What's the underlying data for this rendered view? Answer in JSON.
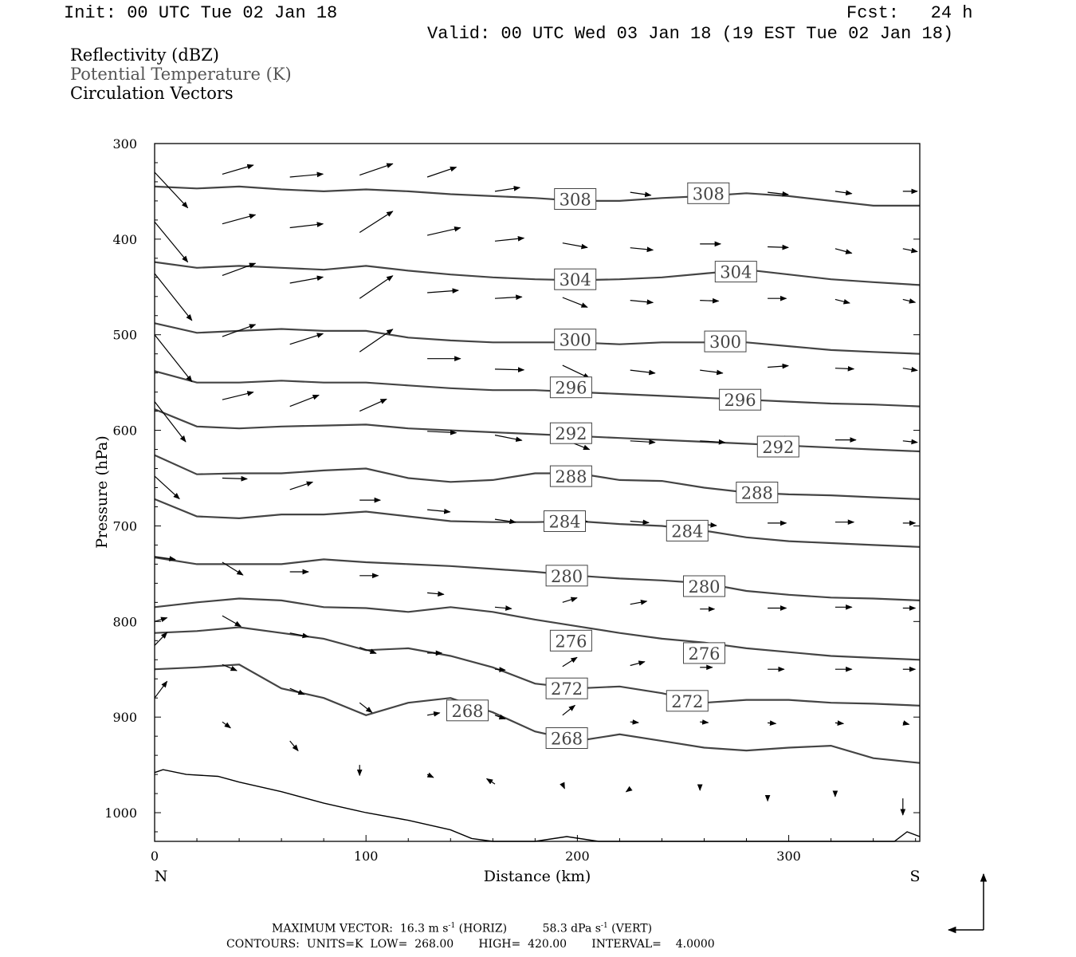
{
  "header": {
    "init": "Init: 00 UTC Tue 02 Jan 18",
    "fcst": "Fcst:   24 h",
    "valid": "Valid: 00 UTC Wed 03 Jan 18 (19 EST Tue 02 Jan 18)"
  },
  "legend": {
    "items": [
      "Reflectivity (dBZ)",
      "Potential Temperature (K)",
      "Circulation Vectors"
    ],
    "colors": [
      "#000000",
      "#555555",
      "#000000"
    ]
  },
  "footer": {
    "max_vector": "MAXIMUM VECTOR:  16.3 m s",
    "max_exp1": "-1",
    "horiz": " (HORIZ)          58.3 dPa s",
    "max_exp2": "-1",
    "vert": " (VERT)",
    "contours": "CONTOURS:  UNITS=K  LOW=  268.00       HIGH=  420.00       INTERVAL=    4.0000"
  },
  "chart_data": {
    "type": "line",
    "title": "",
    "xlabel": "Distance (km)",
    "ylabel": "Pressure (hPa)",
    "xlim": [
      0,
      362
    ],
    "ylim": [
      300,
      1030
    ],
    "y_inverted": true,
    "xticks": [
      0,
      100,
      200,
      300
    ],
    "yticks": [
      300,
      400,
      500,
      600,
      700,
      800,
      900,
      1000
    ],
    "x_end_labels": {
      "left": "N",
      "right": "S"
    },
    "grid": false,
    "colors": {
      "contour": "#444444",
      "terrain": "#000000",
      "vector": "#000000"
    },
    "contour_label_values": [
      "308",
      "304",
      "300",
      "296",
      "292",
      "288",
      "284",
      "280",
      "276",
      "272",
      "268"
    ],
    "series": [
      {
        "name": "308",
        "x": [
          0,
          20,
          40,
          60,
          80,
          100,
          120,
          140,
          160,
          180,
          200,
          220,
          240,
          260,
          280,
          300,
          320,
          340,
          362
        ],
        "y": [
          345,
          347,
          345,
          348,
          350,
          348,
          350,
          353,
          355,
          357,
          360,
          360,
          357,
          355,
          352,
          355,
          360,
          365,
          365
        ]
      },
      {
        "name": "304",
        "x": [
          0,
          20,
          40,
          60,
          80,
          100,
          120,
          140,
          160,
          180,
          200,
          220,
          240,
          260,
          280,
          300,
          320,
          340,
          362
        ],
        "y": [
          424,
          430,
          428,
          430,
          432,
          428,
          433,
          437,
          440,
          442,
          443,
          442,
          440,
          436,
          432,
          437,
          442,
          445,
          448
        ]
      },
      {
        "name": "300",
        "x": [
          0,
          20,
          40,
          60,
          80,
          100,
          120,
          140,
          160,
          180,
          200,
          220,
          240,
          260,
          280,
          300,
          320,
          340,
          362
        ],
        "y": [
          488,
          498,
          496,
          494,
          496,
          496,
          503,
          506,
          508,
          508,
          508,
          510,
          508,
          508,
          508,
          512,
          516,
          518,
          520
        ]
      },
      {
        "name": "296",
        "x": [
          0,
          20,
          40,
          60,
          80,
          100,
          120,
          140,
          160,
          180,
          200,
          220,
          240,
          260,
          280,
          300,
          320,
          340,
          362
        ],
        "y": [
          538,
          550,
          550,
          548,
          550,
          550,
          553,
          556,
          558,
          558,
          560,
          562,
          564,
          566,
          568,
          570,
          572,
          573,
          575
        ]
      },
      {
        "name": "292",
        "x": [
          0,
          20,
          40,
          60,
          80,
          100,
          120,
          140,
          160,
          180,
          200,
          220,
          240,
          260,
          280,
          300,
          320,
          340,
          362
        ],
        "y": [
          578,
          596,
          598,
          596,
          595,
          594,
          598,
          600,
          602,
          604,
          606,
          608,
          610,
          612,
          614,
          616,
          618,
          620,
          622
        ]
      },
      {
        "name": "288",
        "x": [
          0,
          20,
          40,
          60,
          80,
          100,
          120,
          140,
          160,
          180,
          200,
          220,
          240,
          260,
          280,
          300,
          320,
          340,
          362
        ],
        "y": [
          626,
          646,
          645,
          645,
          642,
          640,
          650,
          654,
          652,
          645,
          645,
          652,
          653,
          660,
          665,
          667,
          668,
          670,
          672
        ]
      },
      {
        "name": "284",
        "x": [
          0,
          20,
          40,
          60,
          80,
          100,
          120,
          140,
          160,
          180,
          200,
          220,
          240,
          260,
          280,
          300,
          320,
          340,
          362
        ],
        "y": [
          672,
          690,
          692,
          688,
          688,
          685,
          690,
          695,
          696,
          696,
          695,
          698,
          700,
          705,
          712,
          716,
          718,
          720,
          722
        ]
      },
      {
        "name": "280",
        "x": [
          0,
          20,
          40,
          60,
          80,
          100,
          120,
          140,
          160,
          180,
          200,
          220,
          240,
          260,
          280,
          300,
          320,
          340,
          362
        ],
        "y": [
          733,
          740,
          740,
          740,
          735,
          738,
          740,
          742,
          745,
          748,
          752,
          755,
          757,
          760,
          768,
          772,
          775,
          776,
          778
        ]
      },
      {
        "name": "276",
        "x": [
          0,
          20,
          40,
          60,
          80,
          100,
          120,
          140,
          160,
          180,
          200,
          220,
          240,
          260,
          280,
          300,
          320,
          340,
          362
        ],
        "y": [
          785,
          780,
          776,
          778,
          785,
          786,
          790,
          785,
          790,
          798,
          805,
          812,
          818,
          822,
          828,
          832,
          836,
          838,
          840
        ]
      },
      {
        "name": "272",
        "x": [
          0,
          20,
          40,
          60,
          80,
          100,
          120,
          140,
          160,
          180,
          200,
          220,
          240,
          260,
          280,
          300,
          320,
          340,
          362
        ],
        "y": [
          812,
          810,
          806,
          812,
          818,
          830,
          828,
          836,
          848,
          865,
          870,
          868,
          875,
          885,
          882,
          882,
          885,
          886,
          888
        ]
      },
      {
        "name": "268",
        "x": [
          0,
          20,
          40,
          60,
          80,
          100,
          120,
          140,
          160,
          180,
          200,
          220,
          240,
          260,
          280,
          300,
          320,
          340,
          362
        ],
        "y": [
          850,
          848,
          845,
          870,
          880,
          898,
          885,
          880,
          895,
          915,
          925,
          918,
          925,
          932,
          935,
          932,
          930,
          943,
          948
        ]
      }
    ],
    "terrain": {
      "name": "",
      "x": [
        0,
        4,
        15,
        30,
        40,
        60,
        80,
        100,
        120,
        140,
        150,
        160,
        180,
        195,
        210,
        240,
        280,
        320,
        350,
        356,
        362
      ],
      "y": [
        958,
        955,
        960,
        962,
        968,
        978,
        990,
        1000,
        1008,
        1018,
        1027,
        1030,
        1030,
        1025,
        1030,
        1030,
        1030,
        1030,
        1030,
        1020,
        1025
      ]
    },
    "vectors": [
      {
        "x": 32,
        "p": 332,
        "u": 15,
        "w": -12
      },
      {
        "x": 64,
        "p": 335,
        "u": 16,
        "w": -4
      },
      {
        "x": 97,
        "p": 333,
        "u": 16,
        "w": -15
      },
      {
        "x": 129,
        "p": 335,
        "u": 14,
        "w": -13
      },
      {
        "x": 161,
        "p": 350,
        "u": 12,
        "w": -5
      },
      {
        "x": 193,
        "p": 351,
        "u": 16,
        "w": -2
      },
      {
        "x": 225,
        "p": 351,
        "u": 10,
        "w": 4
      },
      {
        "x": 290,
        "p": 351,
        "u": 10,
        "w": 3
      },
      {
        "x": 322,
        "p": 350,
        "u": 8,
        "w": 3
      },
      {
        "x": 354,
        "p": 350,
        "u": 7,
        "w": 0
      },
      {
        "x": 0,
        "p": 330,
        "u": 16,
        "w": 47
      },
      {
        "x": 32,
        "p": 384,
        "u": 16,
        "w": -12
      },
      {
        "x": 64,
        "p": 388,
        "u": 16,
        "w": -5
      },
      {
        "x": 97,
        "p": 393,
        "u": 16,
        "w": -28
      },
      {
        "x": 129,
        "p": 396,
        "u": 16,
        "w": -10
      },
      {
        "x": 161,
        "p": 402,
        "u": 14,
        "w": -4
      },
      {
        "x": 193,
        "p": 404,
        "u": 12,
        "w": 6
      },
      {
        "x": 225,
        "p": 409,
        "u": 11,
        "w": 3
      },
      {
        "x": 258,
        "p": 405,
        "u": 10,
        "w": 0
      },
      {
        "x": 290,
        "p": 408,
        "u": 10,
        "w": 1
      },
      {
        "x": 322,
        "p": 410,
        "u": 8,
        "w": 6
      },
      {
        "x": 354,
        "p": 410,
        "u": 7,
        "w": 4
      },
      {
        "x": 0,
        "p": 382,
        "u": 16,
        "w": 53
      },
      {
        "x": 32,
        "p": 438,
        "u": 16,
        "w": -16
      },
      {
        "x": 64,
        "p": 446,
        "u": 16,
        "w": -8
      },
      {
        "x": 97,
        "p": 462,
        "u": 16,
        "w": -30
      },
      {
        "x": 129,
        "p": 456,
        "u": 15,
        "w": -3
      },
      {
        "x": 161,
        "p": 462,
        "u": 13,
        "w": -2
      },
      {
        "x": 193,
        "p": 461,
        "u": 12,
        "w": 13
      },
      {
        "x": 225,
        "p": 464,
        "u": 11,
        "w": 3
      },
      {
        "x": 258,
        "p": 464,
        "u": 9,
        "w": 1
      },
      {
        "x": 290,
        "p": 462,
        "u": 9,
        "w": 0
      },
      {
        "x": 322,
        "p": 463,
        "u": 7,
        "w": 5
      },
      {
        "x": 354,
        "p": 463,
        "u": 6,
        "w": 4
      },
      {
        "x": 0,
        "p": 436,
        "u": 18,
        "w": 62
      },
      {
        "x": 32,
        "p": 502,
        "u": 16,
        "w": -16
      },
      {
        "x": 64,
        "p": 510,
        "u": 16,
        "w": -14
      },
      {
        "x": 97,
        "p": 518,
        "u": 16,
        "w": -30
      },
      {
        "x": 129,
        "p": 525,
        "u": 16,
        "w": 0
      },
      {
        "x": 161,
        "p": 536,
        "u": 14,
        "w": 1
      },
      {
        "x": 193,
        "p": 532,
        "u": 13,
        "w": 17
      },
      {
        "x": 225,
        "p": 537,
        "u": 12,
        "w": 4
      },
      {
        "x": 258,
        "p": 537,
        "u": 11,
        "w": 4
      },
      {
        "x": 290,
        "p": 534,
        "u": 10,
        "w": -2
      },
      {
        "x": 322,
        "p": 535,
        "u": 9,
        "w": 1
      },
      {
        "x": 354,
        "p": 535,
        "u": 7,
        "w": 3
      },
      {
        "x": 0,
        "p": 500,
        "u": 18,
        "w": 62
      },
      {
        "x": 32,
        "p": 568,
        "u": 15,
        "w": -10
      },
      {
        "x": 64,
        "p": 575,
        "u": 14,
        "w": -15
      },
      {
        "x": 97,
        "p": 580,
        "u": 13,
        "w": -16
      },
      {
        "x": 129,
        "p": 601,
        "u": 14,
        "w": 2
      },
      {
        "x": 161,
        "p": 605,
        "u": 13,
        "w": 7
      },
      {
        "x": 193,
        "p": 609,
        "u": 13,
        "w": 14
      },
      {
        "x": 225,
        "p": 611,
        "u": 12,
        "w": 2
      },
      {
        "x": 258,
        "p": 611,
        "u": 12,
        "w": 2
      },
      {
        "x": 290,
        "p": 609,
        "u": 11,
        "w": -1
      },
      {
        "x": 322,
        "p": 610,
        "u": 10,
        "w": 0
      },
      {
        "x": 354,
        "p": 611,
        "u": 7,
        "w": 2
      },
      {
        "x": 0,
        "p": 570,
        "u": 15,
        "w": 53
      },
      {
        "x": 32,
        "p": 650,
        "u": 12,
        "w": 1
      },
      {
        "x": 64,
        "p": 662,
        "u": 11,
        "w": -10
      },
      {
        "x": 97,
        "p": 673,
        "u": 10,
        "w": 0
      },
      {
        "x": 129,
        "p": 683,
        "u": 11,
        "w": 3
      },
      {
        "x": 161,
        "p": 693,
        "u": 10,
        "w": 4
      },
      {
        "x": 193,
        "p": 693,
        "u": 12,
        "w": 3
      },
      {
        "x": 225,
        "p": 695,
        "u": 9,
        "w": 2
      },
      {
        "x": 258,
        "p": 698,
        "u": 8,
        "w": 2
      },
      {
        "x": 290,
        "p": 697,
        "u": 9,
        "w": 0
      },
      {
        "x": 322,
        "p": 696,
        "u": 9,
        "w": 0
      },
      {
        "x": 354,
        "p": 697,
        "u": 6,
        "w": 0
      },
      {
        "x": 0,
        "p": 648,
        "u": 12,
        "w": 30
      },
      {
        "x": 32,
        "p": 738,
        "u": 10,
        "w": 17
      },
      {
        "x": 64,
        "p": 748,
        "u": 9,
        "w": 0
      },
      {
        "x": 97,
        "p": 752,
        "u": 9,
        "w": 0
      },
      {
        "x": 129,
        "p": 770,
        "u": 8,
        "w": 2
      },
      {
        "x": 161,
        "p": 785,
        "u": 8,
        "w": 2
      },
      {
        "x": 193,
        "p": 780,
        "u": 7,
        "w": -6
      },
      {
        "x": 225,
        "p": 782,
        "u": 8,
        "w": -4
      },
      {
        "x": 258,
        "p": 787,
        "u": 7,
        "w": 0
      },
      {
        "x": 290,
        "p": 786,
        "u": 9,
        "w": 0
      },
      {
        "x": 322,
        "p": 785,
        "u": 8,
        "w": 0
      },
      {
        "x": 354,
        "p": 786,
        "u": 6,
        "w": 0
      },
      {
        "x": 0,
        "p": 732,
        "u": 10,
        "w": 4
      },
      {
        "x": 32,
        "p": 794,
        "u": 9,
        "w": 14
      },
      {
        "x": 64,
        "p": 812,
        "u": 9,
        "w": 5
      },
      {
        "x": 97,
        "p": 827,
        "u": 8,
        "w": 8
      },
      {
        "x": 129,
        "p": 833,
        "u": 7,
        "w": 0
      },
      {
        "x": 161,
        "p": 850,
        "u": 5,
        "w": 1
      },
      {
        "x": 193,
        "p": 847,
        "u": 7,
        "w": -12
      },
      {
        "x": 225,
        "p": 846,
        "u": 7,
        "w": -5
      },
      {
        "x": 258,
        "p": 848,
        "u": 6,
        "w": 0
      },
      {
        "x": 290,
        "p": 850,
        "u": 8,
        "w": 0
      },
      {
        "x": 322,
        "p": 850,
        "u": 8,
        "w": 0
      },
      {
        "x": 354,
        "p": 850,
        "u": 6,
        "w": 0
      },
      {
        "x": 0,
        "p": 800,
        "u": 6,
        "w": -5
      },
      {
        "x": 0,
        "p": 825,
        "u": 6,
        "w": -17
      },
      {
        "x": 32,
        "p": 845,
        "u": 7,
        "w": 8
      },
      {
        "x": 64,
        "p": 870,
        "u": 7,
        "w": 8
      },
      {
        "x": 97,
        "p": 885,
        "u": 6,
        "w": 13
      },
      {
        "x": 129,
        "p": 898,
        "u": 6,
        "w": -3
      },
      {
        "x": 161,
        "p": 898,
        "u": 5,
        "w": 5
      },
      {
        "x": 193,
        "p": 898,
        "u": 6,
        "w": -13
      },
      {
        "x": 225,
        "p": 905,
        "u": 4,
        "w": 1
      },
      {
        "x": 258,
        "p": 905,
        "u": 4,
        "w": 1
      },
      {
        "x": 290,
        "p": 906,
        "u": 4,
        "w": 1
      },
      {
        "x": 322,
        "p": 906,
        "u": 4,
        "w": 1
      },
      {
        "x": 354,
        "p": 906,
        "u": 3,
        "w": 2
      },
      {
        "x": 0,
        "p": 880,
        "u": 6,
        "w": -22
      },
      {
        "x": 32,
        "p": 905,
        "u": 4,
        "w": 8
      },
      {
        "x": 64,
        "p": 925,
        "u": 4,
        "w": 13
      },
      {
        "x": 97,
        "p": 950,
        "u": 0,
        "w": 14
      },
      {
        "x": 129,
        "p": 960,
        "u": 3,
        "w": 4
      },
      {
        "x": 161,
        "p": 970,
        "u": -4,
        "w": -7
      },
      {
        "x": 193,
        "p": 970,
        "u": 1,
        "w": 6
      },
      {
        "x": 225,
        "p": 975,
        "u": -2,
        "w": 4
      },
      {
        "x": 258,
        "p": 975,
        "u": 0,
        "w": 2
      },
      {
        "x": 290,
        "p": 983,
        "u": 0,
        "w": 6
      },
      {
        "x": 322,
        "p": 980,
        "u": 0,
        "w": 4
      },
      {
        "x": 354,
        "p": 985,
        "u": 0,
        "w": 22
      }
    ]
  }
}
